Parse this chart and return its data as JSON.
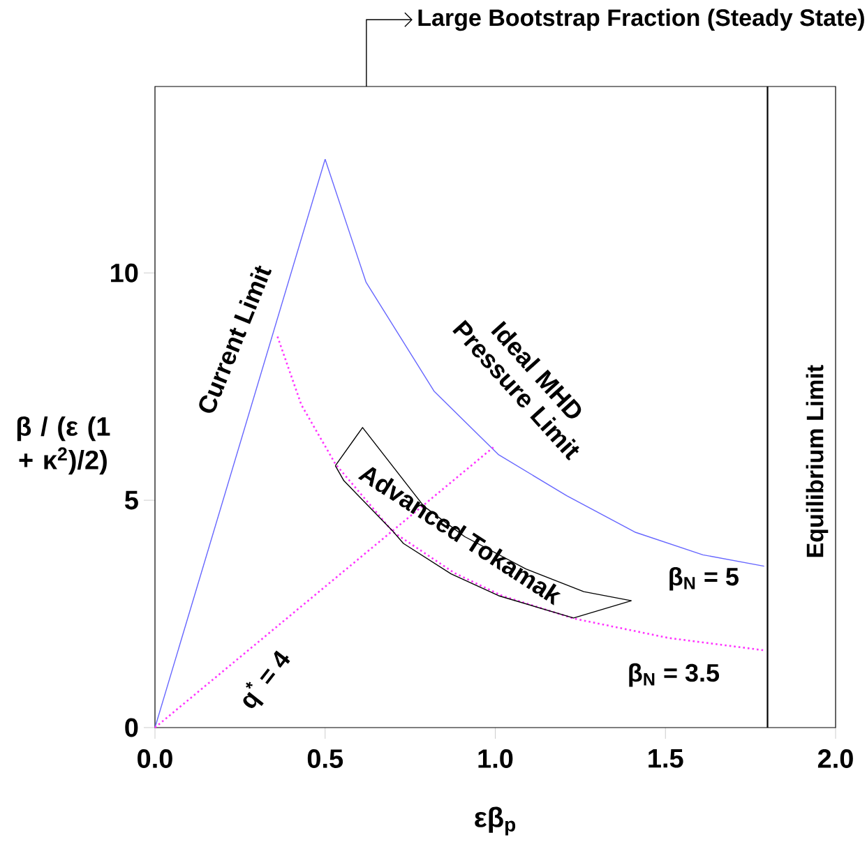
{
  "chart_data": {
    "type": "line",
    "title": "Large Bootstrap Fraction (Steady State)",
    "xlabel": "εβ$_{p}$",
    "ylabel": "β / (ε (1 + κ$^{2}$)/2)",
    "xlim": [
      0,
      2
    ],
    "ylim": [
      0,
      14.1
    ],
    "xticks": [
      {
        "value": 0,
        "label": "0.0"
      },
      0.5,
      {
        "value": 1,
        "label": "1.0"
      },
      1.5,
      {
        "value": 2,
        "label": "2.0"
      }
    ],
    "yticks": [
      0,
      5,
      10
    ],
    "marker": "none",
    "series": [
      {
        "color": "#6666ff",
        "line_style": "solid",
        "x": [
          0,
          0.5
        ],
        "values": [
          0,
          12.5
        ]
      },
      {
        "color": "#6666ff",
        "line_style": "solid",
        "x": [
          0.5,
          0.62,
          0.82,
          1.01,
          1.21,
          1.41,
          1.61,
          1.79
        ],
        "values": [
          12.5,
          9.8,
          7.4,
          6.0,
          5.1,
          4.3,
          3.8,
          3.55
        ]
      },
      {
        "color": "#ff33ff",
        "line_style": "dotted",
        "x": [
          0,
          1.0
        ],
        "values": [
          0,
          6.2
        ]
      },
      {
        "color": "#ff33ff",
        "line_style": "dotted",
        "x": [
          0.36,
          0.43,
          0.53,
          0.7,
          0.88,
          1.02,
          1.23,
          1.51,
          1.79
        ],
        "values": [
          8.6,
          7.1,
          5.8,
          4.3,
          3.4,
          2.9,
          2.4,
          1.97,
          1.7
        ]
      },
      {
        "color": "#000000",
        "line_style": "solid",
        "x": [
          0.53,
          0.61,
          0.79,
          0.91,
          1.09,
          1.26,
          1.4
        ],
        "values": [
          5.76,
          6.6,
          4.87,
          4.2,
          3.49,
          2.99,
          2.79
        ]
      },
      {
        "color": "#000000",
        "line_style": "solid",
        "x": [
          0.53,
          0.555,
          0.7,
          0.73,
          0.87,
          1.01,
          1.23,
          1.4
        ],
        "values": [
          5.76,
          5.43,
          4.31,
          4.05,
          3.38,
          2.9,
          2.41,
          2.79
        ]
      }
    ],
    "ref_lines": [
      {
        "axis": "x",
        "value": 1.8,
        "label": "Equilibrium Limit",
        "color": "#000000"
      }
    ],
    "annotations": [
      "Current Limit",
      "Ideal MHD Pressure Limit",
      "Advanced Tokamak",
      "β$_{N}$ = 5",
      "β$_{N}$ = 3.5",
      "q$^{*}$ = 4"
    ]
  }
}
